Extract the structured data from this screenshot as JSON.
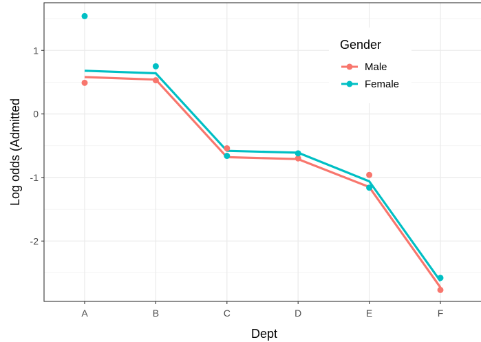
{
  "chart_data": {
    "type": "line",
    "xlabel": "Dept",
    "ylabel": "Log odds (Admitted",
    "categories": [
      "A",
      "B",
      "C",
      "D",
      "E",
      "F"
    ],
    "ylim": [
      -2.95,
      1.75
    ],
    "yticks": [
      -2,
      -1,
      0,
      1
    ],
    "ytick_labels": [
      "-2",
      "-1",
      "0",
      "1"
    ],
    "grid": true,
    "legend": {
      "title": "Gender",
      "placement": "top-right (inside plot)",
      "entries": [
        "Male",
        "Female"
      ]
    },
    "series": [
      {
        "name": "Male",
        "color": "#F8766D",
        "points": [
          0.49,
          0.53,
          -0.54,
          -0.7,
          -0.96,
          -2.77
        ],
        "fitted": [
          0.58,
          0.54,
          -0.68,
          -0.71,
          -1.15,
          -2.73
        ]
      },
      {
        "name": "Female",
        "color": "#00BFC4",
        "points": [
          1.54,
          0.75,
          -0.66,
          -0.62,
          -1.16,
          -2.58
        ],
        "fitted": [
          0.68,
          0.64,
          -0.58,
          -0.61,
          -1.06,
          -2.63
        ]
      }
    ]
  }
}
